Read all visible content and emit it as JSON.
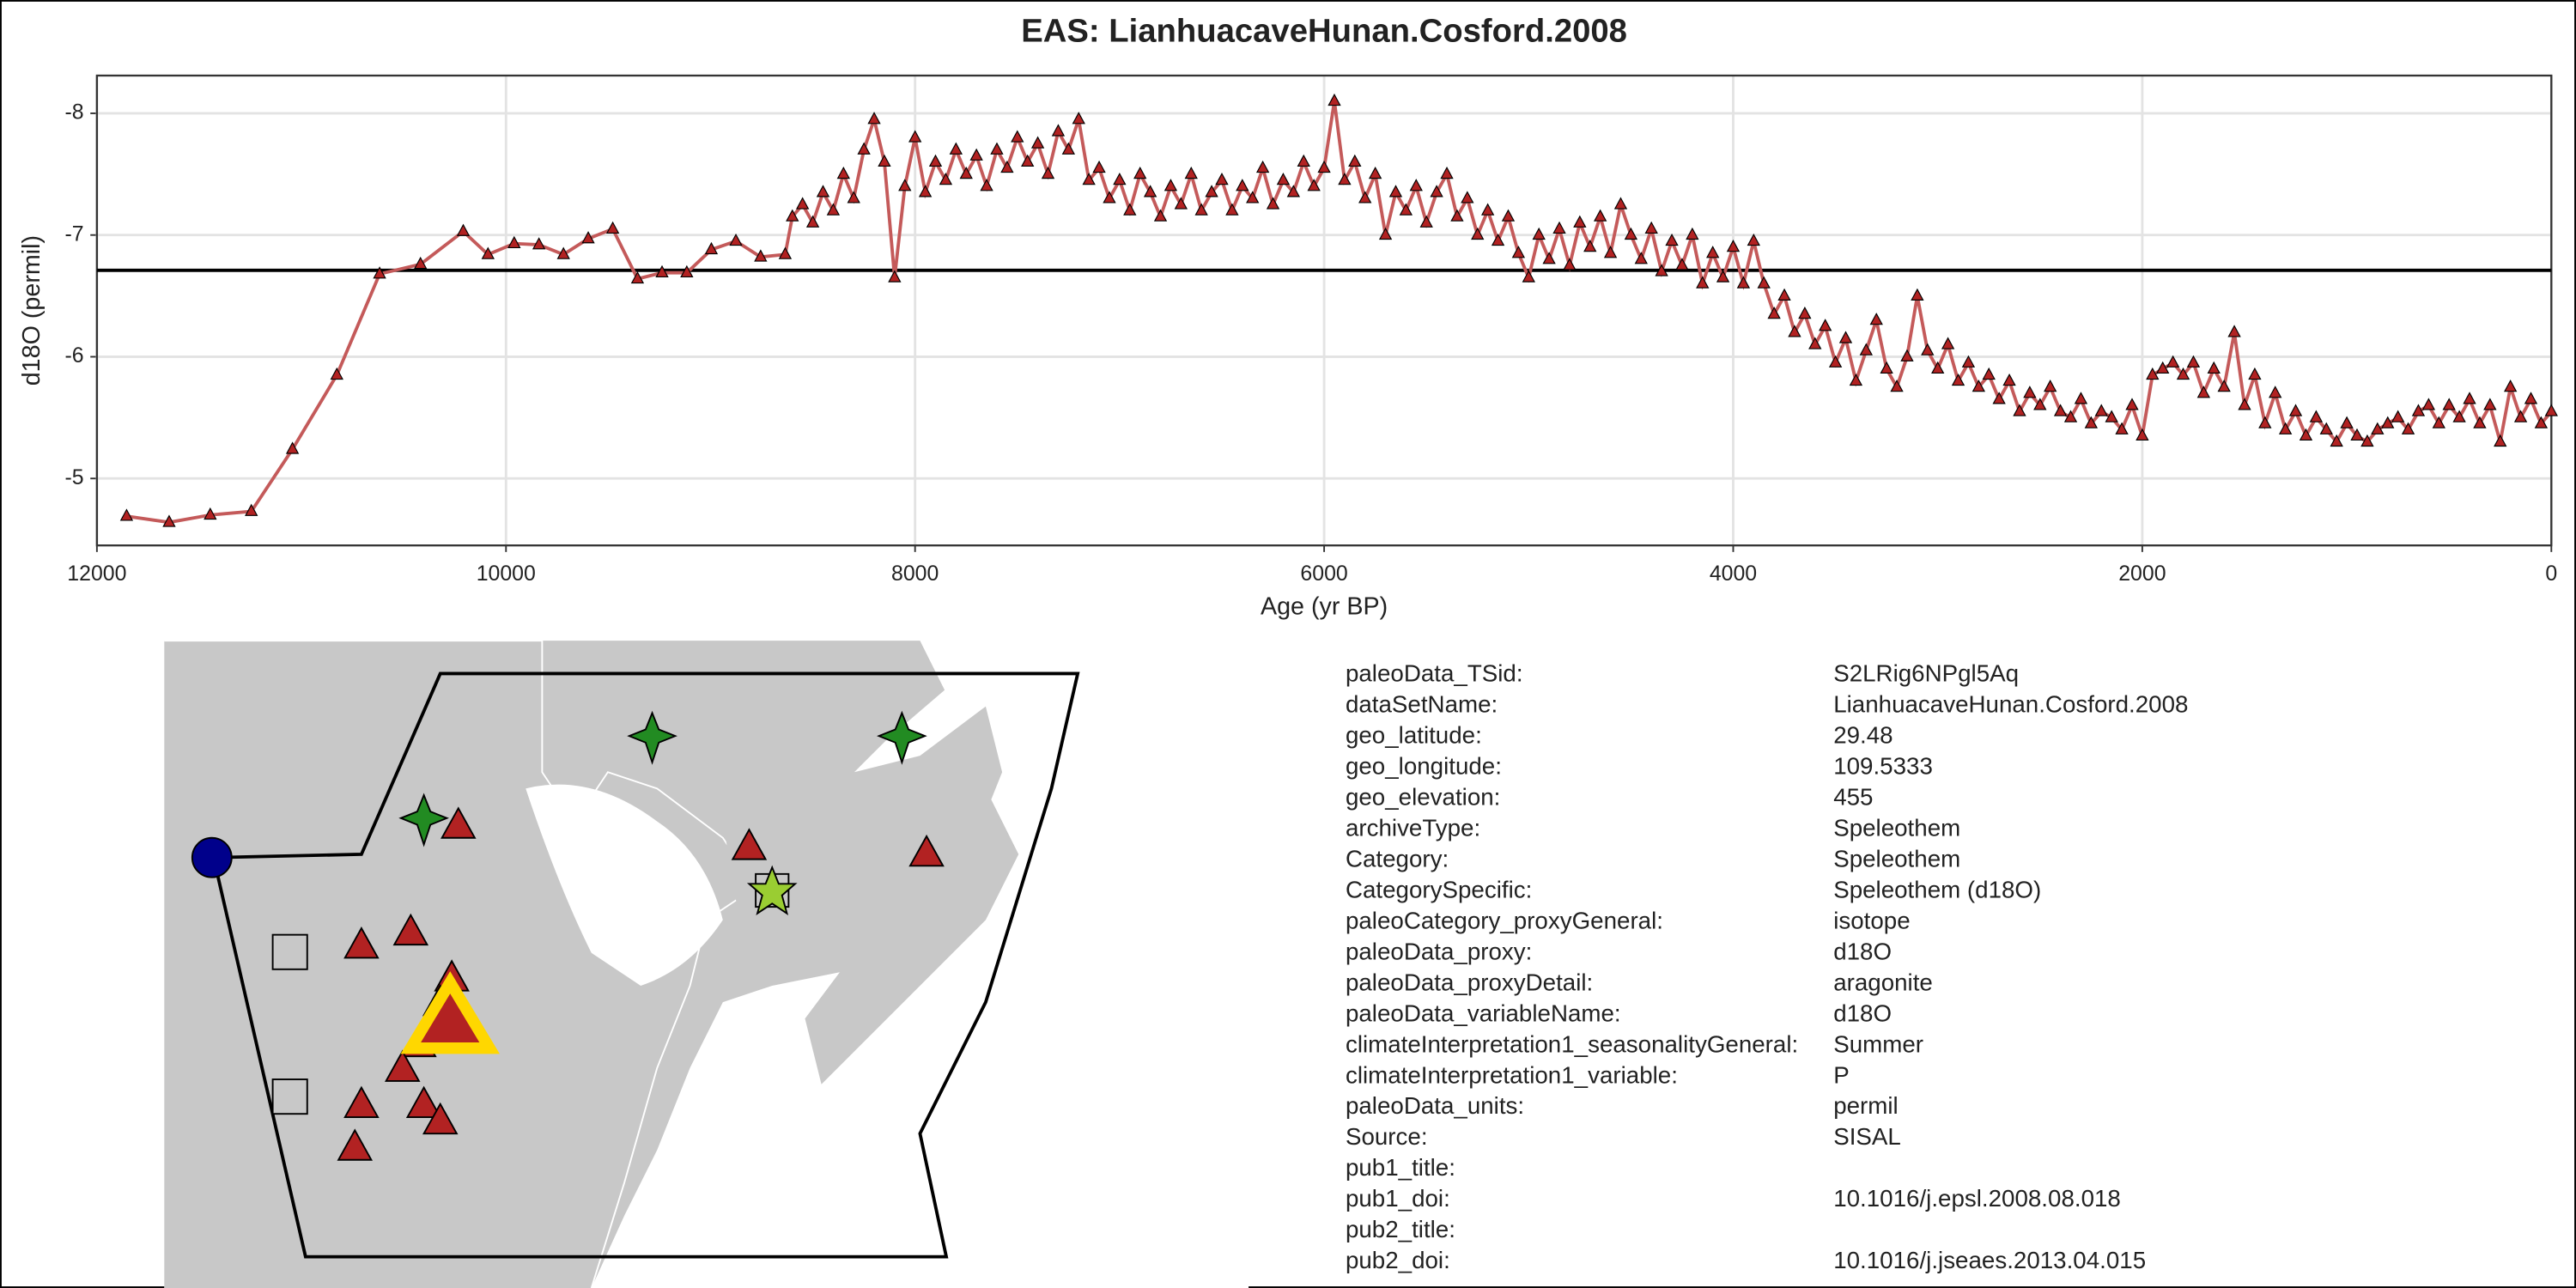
{
  "chart_data": {
    "type": "line",
    "title": "EAS: LianhuacaveHunan.Cosford.2008",
    "x_label": "Age (yr BP)",
    "y_label": "d18O (permil)",
    "xlim": [
      12000,
      0
    ],
    "ylim": [
      -4.45,
      -8.31
    ],
    "xticks": [
      12000,
      10000,
      8000,
      6000,
      4000,
      2000,
      0
    ],
    "yticks": [
      -8,
      -7,
      -6,
      -5
    ],
    "grid": true,
    "hline": -6.71,
    "line_color": "#c45a5a",
    "marker_color": "#b22222",
    "x": [
      11855,
      11647,
      11446,
      11245,
      11044,
      10827,
      10618,
      10418,
      10209,
      10088,
      9960,
      9839,
      9719,
      9598,
      9478,
      9357,
      9237,
      9116,
      8996,
      8876,
      8755,
      8635,
      8600,
      8550,
      8500,
      8450,
      8400,
      8350,
      8300,
      8250,
      8200,
      8150,
      8100,
      8050,
      8000,
      7950,
      7900,
      7850,
      7800,
      7750,
      7700,
      7650,
      7600,
      7550,
      7500,
      7450,
      7400,
      7350,
      7300,
      7250,
      7200,
      7150,
      7100,
      7050,
      7000,
      6950,
      6900,
      6850,
      6800,
      6750,
      6700,
      6650,
      6600,
      6550,
      6500,
      6450,
      6400,
      6350,
      6300,
      6250,
      6200,
      6150,
      6100,
      6050,
      6000,
      5950,
      5900,
      5850,
      5800,
      5750,
      5700,
      5650,
      5600,
      5550,
      5500,
      5450,
      5400,
      5350,
      5300,
      5250,
      5200,
      5150,
      5100,
      5050,
      5000,
      4950,
      4900,
      4850,
      4800,
      4750,
      4700,
      4650,
      4600,
      4550,
      4500,
      4450,
      4400,
      4350,
      4300,
      4250,
      4200,
      4150,
      4100,
      4050,
      4000,
      3950,
      3900,
      3850,
      3800,
      3750,
      3700,
      3650,
      3600,
      3550,
      3500,
      3450,
      3400,
      3350,
      3300,
      3250,
      3200,
      3150,
      3100,
      3050,
      3000,
      2950,
      2900,
      2850,
      2800,
      2750,
      2700,
      2650,
      2600,
      2550,
      2500,
      2450,
      2400,
      2350,
      2300,
      2250,
      2200,
      2150,
      2100,
      2050,
      2000,
      1950,
      1900,
      1850,
      1800,
      1750,
      1700,
      1650,
      1600,
      1550,
      1500,
      1450,
      1400,
      1350,
      1300,
      1250,
      1200,
      1150,
      1100,
      1050,
      1000,
      950,
      900,
      850,
      800,
      750,
      700,
      650,
      600,
      550,
      500,
      450,
      400,
      350,
      300,
      250,
      200,
      150,
      100,
      50,
      0
    ],
    "values": [
      -4.69,
      -4.64,
      -4.7,
      -4.73,
      -5.24,
      -5.85,
      -6.68,
      -6.76,
      -7.03,
      -6.84,
      -6.93,
      -6.92,
      -6.84,
      -6.97,
      -7.05,
      -6.64,
      -6.69,
      -6.69,
      -6.88,
      -6.95,
      -6.82,
      -6.84,
      -7.15,
      -7.25,
      -7.1,
      -7.35,
      -7.2,
      -7.5,
      -7.3,
      -7.7,
      -7.95,
      -7.6,
      -6.65,
      -7.4,
      -7.8,
      -7.35,
      -7.6,
      -7.45,
      -7.7,
      -7.5,
      -7.65,
      -7.4,
      -7.7,
      -7.55,
      -7.8,
      -7.6,
      -7.75,
      -7.5,
      -7.85,
      -7.7,
      -7.95,
      -7.45,
      -7.55,
      -7.3,
      -7.45,
      -7.2,
      -7.5,
      -7.35,
      -7.15,
      -7.4,
      -7.25,
      -7.5,
      -7.2,
      -7.35,
      -7.45,
      -7.2,
      -7.4,
      -7.3,
      -7.55,
      -7.25,
      -7.45,
      -7.35,
      -7.6,
      -7.4,
      -7.55,
      -8.1,
      -7.45,
      -7.6,
      -7.3,
      -7.5,
      -7.0,
      -7.35,
      -7.2,
      -7.4,
      -7.1,
      -7.35,
      -7.5,
      -7.15,
      -7.3,
      -7.0,
      -7.2,
      -6.95,
      -7.15,
      -6.85,
      -6.65,
      -7.0,
      -6.8,
      -7.05,
      -6.75,
      -7.1,
      -6.9,
      -7.15,
      -6.85,
      -7.25,
      -7.0,
      -6.8,
      -7.05,
      -6.7,
      -6.95,
      -6.75,
      -7.0,
      -6.6,
      -6.85,
      -6.65,
      -6.9,
      -6.6,
      -6.95,
      -6.6,
      -6.35,
      -6.5,
      -6.2,
      -6.35,
      -6.1,
      -6.25,
      -5.95,
      -6.15,
      -5.8,
      -6.05,
      -6.3,
      -5.9,
      -5.75,
      -6.0,
      -6.5,
      -6.05,
      -5.9,
      -6.1,
      -5.8,
      -5.95,
      -5.75,
      -5.85,
      -5.65,
      -5.8,
      -5.55,
      -5.7,
      -5.6,
      -5.75,
      -5.55,
      -5.5,
      -5.65,
      -5.45,
      -5.55,
      -5.5,
      -5.4,
      -5.6,
      -5.35,
      -5.85,
      -5.9,
      -5.95,
      -5.85,
      -5.95,
      -5.7,
      -5.9,
      -5.75,
      -6.2,
      -5.6,
      -5.85,
      -5.45,
      -5.7,
      -5.4,
      -5.55,
      -5.35,
      -5.5,
      -5.4,
      -5.3,
      -5.45,
      -5.35,
      -5.3,
      -5.4,
      -5.45,
      -5.5,
      -5.4,
      -5.55,
      -5.6,
      -5.45,
      -5.6,
      -5.5,
      -5.65,
      -5.45,
      -5.6,
      -5.3,
      -5.75,
      -5.5,
      -5.65,
      -5.45,
      -5.55
    ]
  },
  "info": {
    "rows": [
      [
        "paleoData_TSid:",
        "S2LRig6NPgl5Aq"
      ],
      [
        "dataSetName:",
        "LianhuacaveHunan.Cosford.2008"
      ],
      [
        "geo_latitude:",
        "29.48"
      ],
      [
        "geo_longitude:",
        "109.5333"
      ],
      [
        "geo_elevation:",
        "455"
      ],
      [
        "archiveType:",
        "Speleothem"
      ],
      [
        "Category:",
        "Speleothem"
      ],
      [
        "CategorySpecific:",
        "Speleothem (d18O)"
      ],
      [
        "paleoCategory_proxyGeneral:",
        "isotope"
      ],
      [
        "paleoData_proxy:",
        "d18O"
      ],
      [
        "paleoData_proxyDetail:",
        "aragonite"
      ],
      [
        "paleoData_variableName:",
        "d18O"
      ],
      [
        "climateInterpretation1_seasonalityGeneral:",
        "Summer"
      ],
      [
        "climateInterpretation1_variable:",
        "P"
      ],
      [
        "paleoData_units:",
        "permil"
      ],
      [
        "Source:",
        "SISAL"
      ],
      [
        "pub1_title:"
      ],
      [
        "pub1_doi:",
        "10.1016/j.epsl.2008.08.018"
      ],
      [
        "pub2_title:"
      ],
      [
        "pub2_doi:",
        "10.1016/j.jseaes.2013.04.015"
      ]
    ]
  }
}
